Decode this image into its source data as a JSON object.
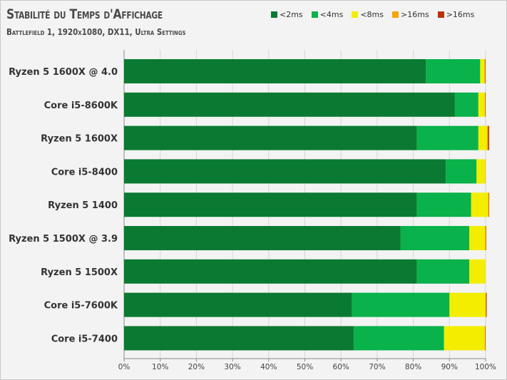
{
  "title": "Stabilité du Temps d'Affichage",
  "subtitle": "Battlefield 1, 1920x1080, DX11, Ultra Settings",
  "colors": {
    "lt2": "#0a7a32",
    "lt4": "#09b24a",
    "lt8": "#f3ed00",
    "gt16a": "#f5a500",
    "gt16b": "#b8330b"
  },
  "chart_data": {
    "type": "bar",
    "orientation": "horizontal",
    "stacked": true,
    "categories": [
      "Ryzen 5 1600X @ 4.0",
      "Core i5-8600K",
      "Ryzen 5 1600X",
      "Core i5-8400",
      "Ryzen 5 1400",
      "Ryzen 5 1500X @ 3.9",
      "Ryzen 5 1500X",
      "Core i5-7600K",
      "Core i5-7400"
    ],
    "series": [
      {
        "name": "<2ms",
        "color_key": "lt2",
        "values": [
          83.5,
          91.5,
          81.0,
          89.0,
          81.0,
          76.5,
          81.0,
          63.0,
          63.5
        ]
      },
      {
        "name": "<4ms",
        "color_key": "lt4",
        "values": [
          15.0,
          6.5,
          17.0,
          8.5,
          15.0,
          19.0,
          14.5,
          27.0,
          25.0
        ]
      },
      {
        "name": "<8ms",
        "color_key": "lt8",
        "values": [
          1.2,
          1.8,
          2.4,
          2.4,
          4.7,
          4.4,
          4.5,
          10.0,
          11.3
        ]
      },
      {
        "name": ">16ms",
        "color_key": "gt16a",
        "values": [
          0.2,
          0.1,
          0.3,
          0.1,
          0.2,
          0.2,
          0.0,
          0.1,
          0.1
        ]
      },
      {
        "name": ">16ms",
        "color_key": "gt16b",
        "values": [
          0.1,
          0.1,
          0.3,
          0.0,
          0.1,
          0.1,
          0.0,
          0.2,
          0.1
        ]
      }
    ],
    "xlim": [
      0,
      100
    ],
    "xticks": [
      "0%",
      "10%",
      "20%",
      "30%",
      "40%",
      "50%",
      "60%",
      "70%",
      "80%",
      "90%",
      "100%"
    ],
    "legend_position": "top-right",
    "grid": true
  }
}
